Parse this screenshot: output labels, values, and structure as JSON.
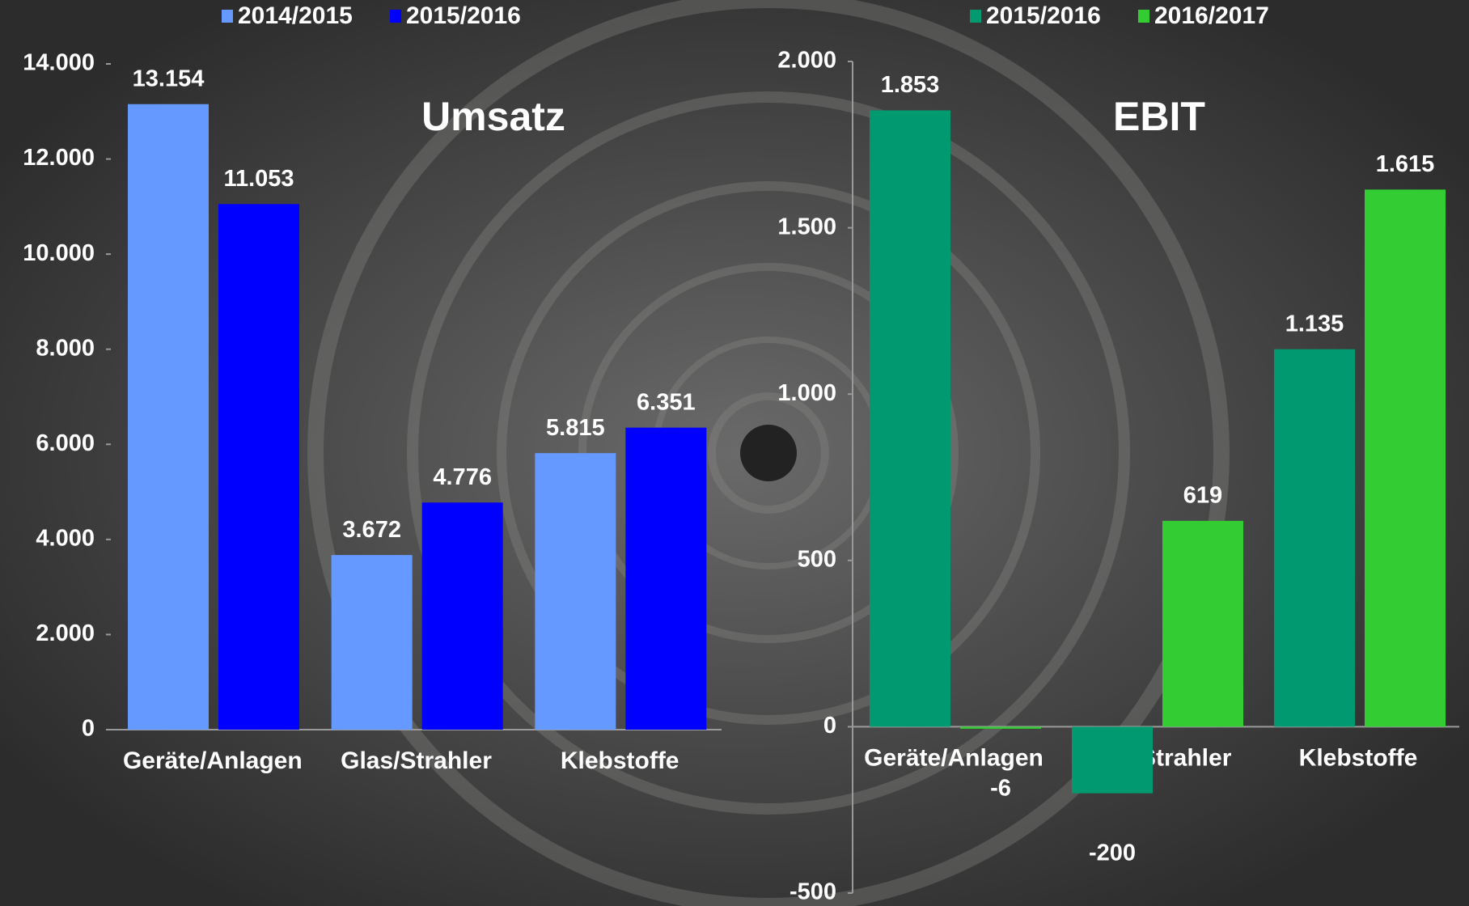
{
  "chart_data": [
    {
      "type": "bar",
      "title": "Umsatz",
      "categories": [
        "Geräte/Anlagen",
        "Glas/Strahler",
        "Klebstoffe"
      ],
      "series": [
        {
          "name": "2014/2015",
          "color": "#6699ff",
          "values": [
            13154,
            3672,
            5815
          ],
          "value_labels": [
            "13.154",
            "3.672",
            "5.815"
          ]
        },
        {
          "name": "2015/2016",
          "color": "#0000ff",
          "values": [
            11053,
            4776,
            6351
          ],
          "value_labels": [
            "11.053",
            "4.776",
            "6.351"
          ]
        }
      ],
      "ylim": [
        0,
        14000
      ],
      "yticks": [
        0,
        {
          "value": 2000,
          "label": "2.000"
        },
        {
          "value": 4000,
          "label": "4.000"
        },
        {
          "value": 6000,
          "label": "6.000"
        },
        {
          "value": 8000,
          "label": "8.000"
        },
        {
          "value": 10000,
          "label": "10.000"
        },
        {
          "value": 12000,
          "label": "12.000"
        },
        {
          "value": 14000,
          "label": "14.000"
        }
      ],
      "grid": false
    },
    {
      "type": "bar",
      "title": "EBIT",
      "categories": [
        "Geräte/Anlagen",
        "Glas/Strahler",
        "Klebstoffe"
      ],
      "series": [
        {
          "name": "2015/2016",
          "color": "#009970",
          "values": [
            1853,
            -200,
            1135
          ],
          "value_labels": [
            "1.853",
            "-200",
            "1.135"
          ]
        },
        {
          "name": "2016/2017",
          "color": "#33cc33",
          "values": [
            -6,
            619,
            1615
          ],
          "value_labels": [
            "-6",
            "619",
            "1.615"
          ]
        }
      ],
      "ylim": [
        -500,
        2000
      ],
      "yticks": [
        -500,
        0,
        500,
        {
          "value": 1000,
          "label": "1.000"
        },
        {
          "value": 1500,
          "label": "1.500"
        },
        {
          "value": 2000,
          "label": "2.000"
        }
      ],
      "grid": false
    }
  ]
}
